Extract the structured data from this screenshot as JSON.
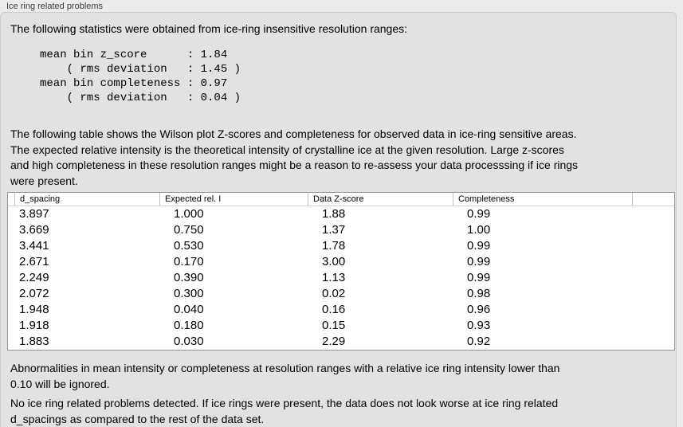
{
  "panel": {
    "title": "Ice ring related problems"
  },
  "intro": {
    "lines": [
      "The following statistics were obtained from ice-ring insensitive resolution ranges:"
    ]
  },
  "stats_block": {
    "lines": [
      "mean bin z_score      : 1.84",
      "    ( rms deviation   : 1.45 )",
      "mean bin completeness : 0.97",
      "    ( rms deviation   : 0.04 )"
    ]
  },
  "description": {
    "lines": [
      "The following table shows the Wilson plot Z-scores and completeness for observed data in ice-ring sensitive areas.",
      "The expected relative intensity is the theoretical intensity of crystalline ice at the given resolution. Large z-scores",
      "and high completeness in these resolution ranges might be a reason to re-assess your data processsing if ice rings",
      "were present."
    ]
  },
  "table": {
    "columns": [
      "d_spacing",
      "Expected rel. I",
      "Data Z-score",
      "Completeness"
    ],
    "rows": [
      [
        "3.897",
        "1.000",
        "1.88",
        "0.99"
      ],
      [
        "3.669",
        "0.750",
        "1.37",
        "1.00"
      ],
      [
        "3.441",
        "0.530",
        "1.78",
        "0.99"
      ],
      [
        "2.671",
        "0.170",
        "3.00",
        "0.99"
      ],
      [
        "2.249",
        "0.390",
        "1.13",
        "0.99"
      ],
      [
        "2.072",
        "0.300",
        "0.02",
        "0.98"
      ],
      [
        "1.948",
        "0.040",
        "0.16",
        "0.96"
      ],
      [
        "1.918",
        "0.180",
        "0.15",
        "0.93"
      ],
      [
        "1.883",
        "0.030",
        "2.29",
        "0.92"
      ]
    ]
  },
  "notes": {
    "ignore_threshold": {
      "lines": [
        "Abnormalities in mean intensity or completeness at resolution ranges with a relative ice ring intensity lower than",
        "0.10 will be ignored."
      ]
    },
    "conclusion": {
      "lines": [
        "No ice ring related problems detected. If ice rings were present, the data does not look worse at ice ring related",
        "d_spacings as compared to the rest of the data set."
      ]
    }
  },
  "colors": {
    "page_bg": "#ececec",
    "panel_bg": "#e2e2e2",
    "panel_border": "#cbcbcb",
    "table_bg": "#ffffff",
    "table_border": "#949494",
    "header_separator": "#c2c2c2",
    "text": "#000000",
    "title_text": "#3c3c3c"
  }
}
